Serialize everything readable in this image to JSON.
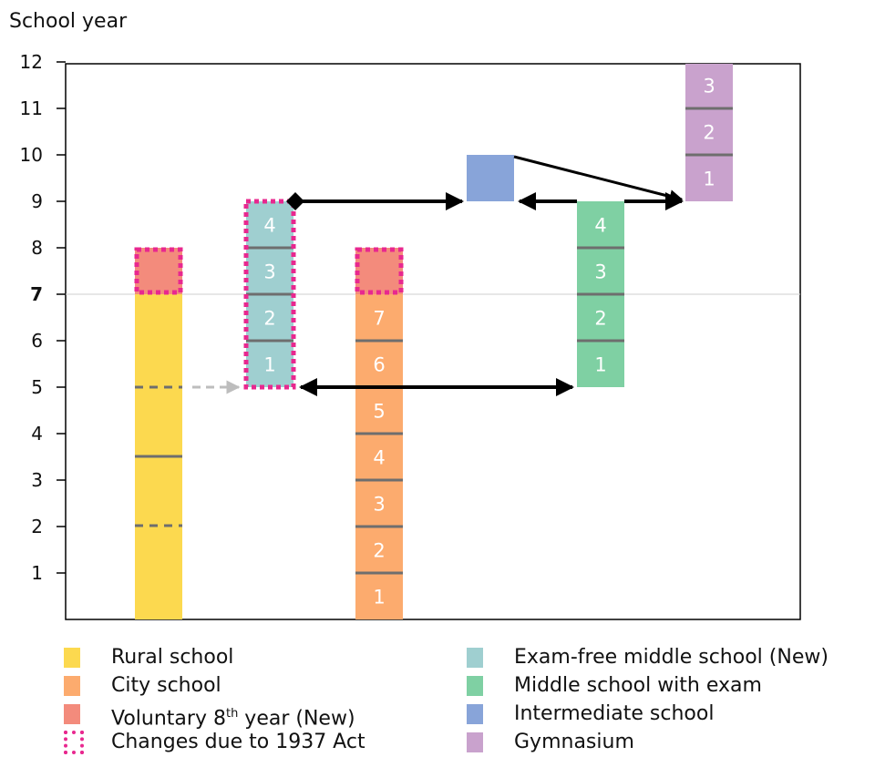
{
  "axis": {
    "ylabel": "School year",
    "ticks": [
      "1",
      "2",
      "3",
      "4",
      "5",
      "6",
      "7",
      "8",
      "9",
      "10",
      "11",
      "12"
    ],
    "highlight_tick": "7"
  },
  "colors": {
    "rural": "#fcd94f",
    "city": "#fcab6e",
    "voluntary": "#f38b7c",
    "examfree": "#9fcfd0",
    "middle": "#7fd0a3",
    "intermediate": "#88a4d9",
    "gymnasium": "#c9a2cd",
    "changes": "#e8288f",
    "divider": "#6e6e6e",
    "arrow": "#000000",
    "dashed_arrow": "#bdbdbd"
  },
  "columns": {
    "examfree": [
      "1",
      "2",
      "3",
      "4"
    ],
    "city": [
      "1",
      "2",
      "3",
      "4",
      "5",
      "6",
      "7"
    ],
    "middle": [
      "1",
      "2",
      "3",
      "4"
    ],
    "gymnasium": [
      "1",
      "2",
      "3"
    ]
  },
  "legend": {
    "left": [
      {
        "label": "Rural school",
        "color": "#fcd94f",
        "icon": "rural-swatch"
      },
      {
        "label": "City school",
        "color": "#fcab6e",
        "icon": "city-swatch"
      },
      {
        "label": "Voluntary 8th year (New)",
        "color": "#f38b7c",
        "icon": "voluntary-swatch"
      },
      {
        "label": "Changes due to 1937 Act",
        "color": "#e8288f",
        "icon": "dotted-border-swatch"
      }
    ],
    "right": [
      {
        "label": "Exam-free middle school (New)",
        "color": "#9fcfd0",
        "icon": "examfree-swatch"
      },
      {
        "label": "Middle school with exam",
        "color": "#7fd0a3",
        "icon": "middle-swatch"
      },
      {
        "label": "Intermediate school",
        "color": "#88a4d9",
        "icon": "intermediate-swatch"
      },
      {
        "label": "Gymnasium",
        "color": "#c9a2cd",
        "icon": "gymnasium-swatch"
      }
    ]
  }
}
